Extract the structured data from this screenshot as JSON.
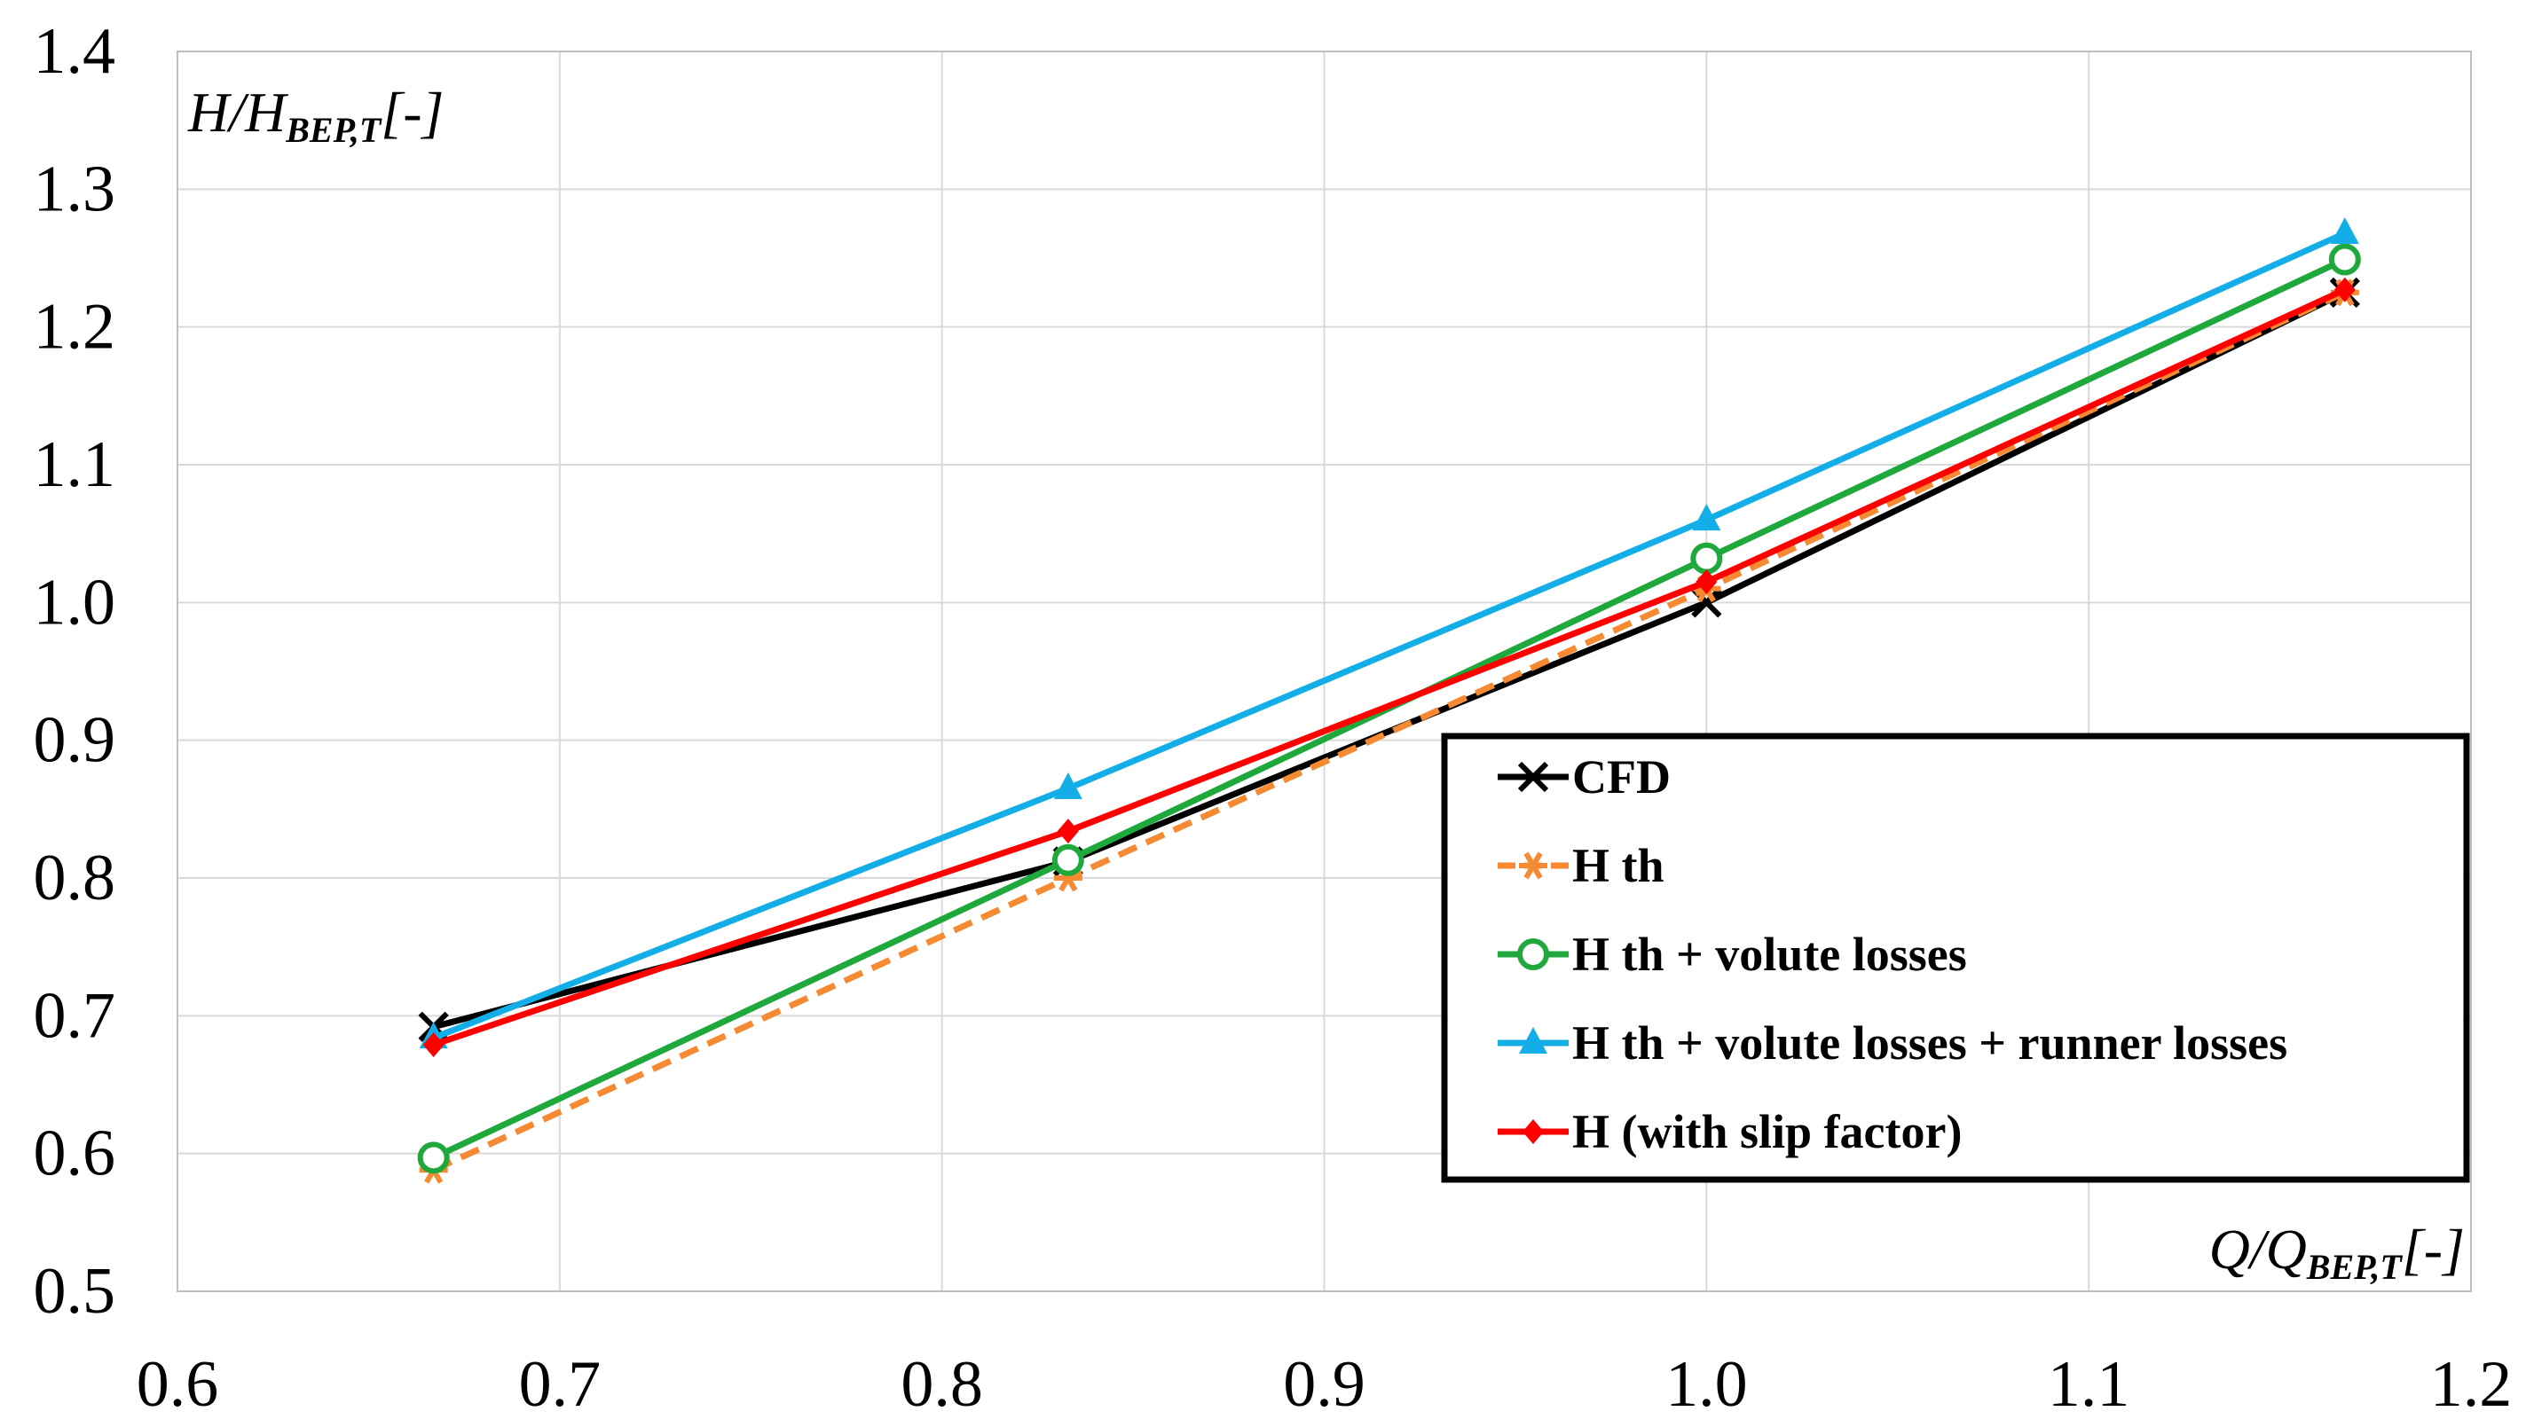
{
  "chart_data": {
    "type": "line",
    "title": "",
    "xlabel": {
      "main": "Q/Q",
      "sub": "BEP,T",
      "unit": "[-]"
    },
    "ylabel": {
      "main": "H/H",
      "sub": "BEP,T",
      "unit": "[-]"
    },
    "xlim": [
      0.6,
      1.2
    ],
    "ylim": [
      0.5,
      1.4
    ],
    "xticks": [
      0.6,
      0.7,
      0.8,
      0.9,
      1.0,
      1.1,
      1.2
    ],
    "yticks": [
      0.5,
      0.6,
      0.7,
      0.8,
      0.9,
      1.0,
      1.1,
      1.2,
      1.3,
      1.4
    ],
    "xtick_labels": [
      "0.6",
      "0.7",
      "0.8",
      "0.9",
      "1.0",
      "1.1",
      "1.2"
    ],
    "ytick_labels": [
      "0.5",
      "0.6",
      "0.7",
      "0.8",
      "0.9",
      "1.0",
      "1.1",
      "1.2",
      "1.3",
      "1.4"
    ],
    "grid": true,
    "legend_position": "center-right",
    "x": [
      0.667,
      0.833,
      1.0,
      1.167
    ],
    "series": [
      {
        "name": "CFD",
        "color": "#000000",
        "marker": "x",
        "dashed": false,
        "values": [
          0.692,
          0.812,
          1.0,
          1.225
        ]
      },
      {
        "name": "H th",
        "color": "#f58a32",
        "marker": "asterisk",
        "dashed": true,
        "values": [
          0.588,
          0.8,
          1.01,
          1.225
        ]
      },
      {
        "name": "H th + volute losses",
        "color": "#1fa83c",
        "marker": "circle",
        "dashed": false,
        "values": [
          0.597,
          0.813,
          1.032,
          1.249
        ]
      },
      {
        "name": "H th + volute losses + runner losses",
        "color": "#13aee8",
        "marker": "triangle",
        "dashed": false,
        "values": [
          0.684,
          0.865,
          1.06,
          1.268
        ]
      },
      {
        "name": "H (with slip factor)",
        "color": "#ff0000",
        "marker": "diamond",
        "dashed": false,
        "values": [
          0.679,
          0.834,
          1.015,
          1.227
        ]
      }
    ]
  }
}
